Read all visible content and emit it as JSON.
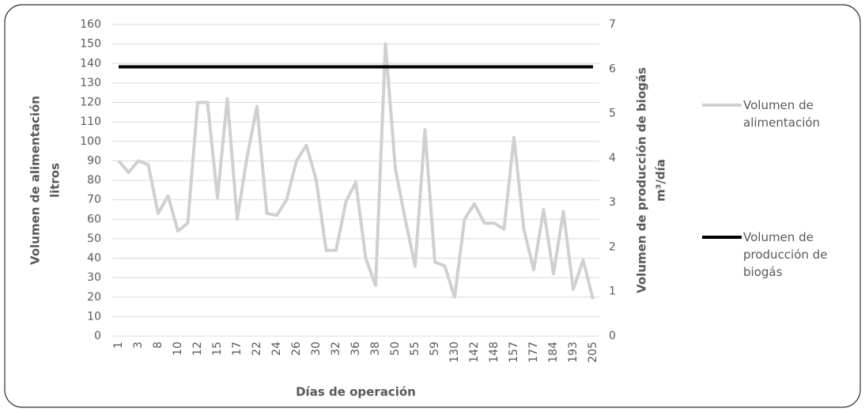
{
  "chart_data": {
    "type": "line",
    "xlabel": "Días de operación",
    "ylabel": "Volumen de alimentación",
    "ylabel_unit": "litros",
    "y2label": "Volumen de producción de biogás",
    "y2label_unit": "m³/día",
    "categories": [
      "1",
      null,
      "3",
      null,
      "8",
      null,
      "10",
      null,
      "12",
      null,
      "15",
      null,
      "17",
      null,
      "22",
      null,
      "24",
      null,
      "26",
      null,
      "30",
      null,
      "32",
      null,
      "36",
      null,
      "38",
      null,
      "50",
      null,
      "55",
      null,
      "59",
      null,
      "130",
      null,
      "142",
      null,
      "148",
      null,
      "157",
      null,
      "177",
      null,
      "184",
      null,
      "193",
      null,
      "205"
    ],
    "series": [
      {
        "name": "Volumen de alimentación",
        "color": "#d0d0d0",
        "values": [
          90,
          84,
          90,
          88,
          63,
          72,
          54,
          58,
          120,
          120,
          71,
          122,
          60,
          92,
          118,
          63,
          62,
          70,
          90,
          98,
          80,
          44,
          44,
          69,
          79,
          40,
          26,
          150,
          86,
          60,
          36,
          106,
          38,
          36,
          20,
          60,
          68,
          58,
          58,
          55,
          102,
          55,
          34,
          65,
          32,
          64,
          24,
          39,
          19
        ]
      },
      {
        "name": "Volumen de producción de biogás",
        "color": "#000000",
        "axis": "y2",
        "values": [
          6.05,
          6.05,
          6.05,
          6.05,
          6.05,
          6.05,
          6.05,
          6.05,
          6.05,
          6.05,
          6.05,
          6.05,
          6.05,
          6.05,
          6.05,
          6.05,
          6.05,
          6.05,
          6.05,
          6.05,
          6.05,
          6.05,
          6.05,
          6.05,
          6.05,
          6.05,
          6.05,
          6.05,
          6.05,
          6.05,
          6.05,
          6.05,
          6.05,
          6.05,
          6.05,
          6.05,
          6.05,
          6.05,
          6.05,
          6.05,
          6.05,
          6.05,
          6.05,
          6.05,
          6.05,
          6.05,
          6.05,
          6.05,
          6.05
        ]
      }
    ],
    "ylim": [
      0,
      160
    ],
    "yticks": [
      0,
      10,
      20,
      30,
      40,
      50,
      60,
      70,
      80,
      90,
      100,
      110,
      120,
      130,
      140,
      150,
      160
    ],
    "y2lim": [
      0,
      7
    ],
    "y2ticks": [
      0,
      1,
      2,
      3,
      4,
      5,
      6,
      7
    ],
    "grid": true
  }
}
